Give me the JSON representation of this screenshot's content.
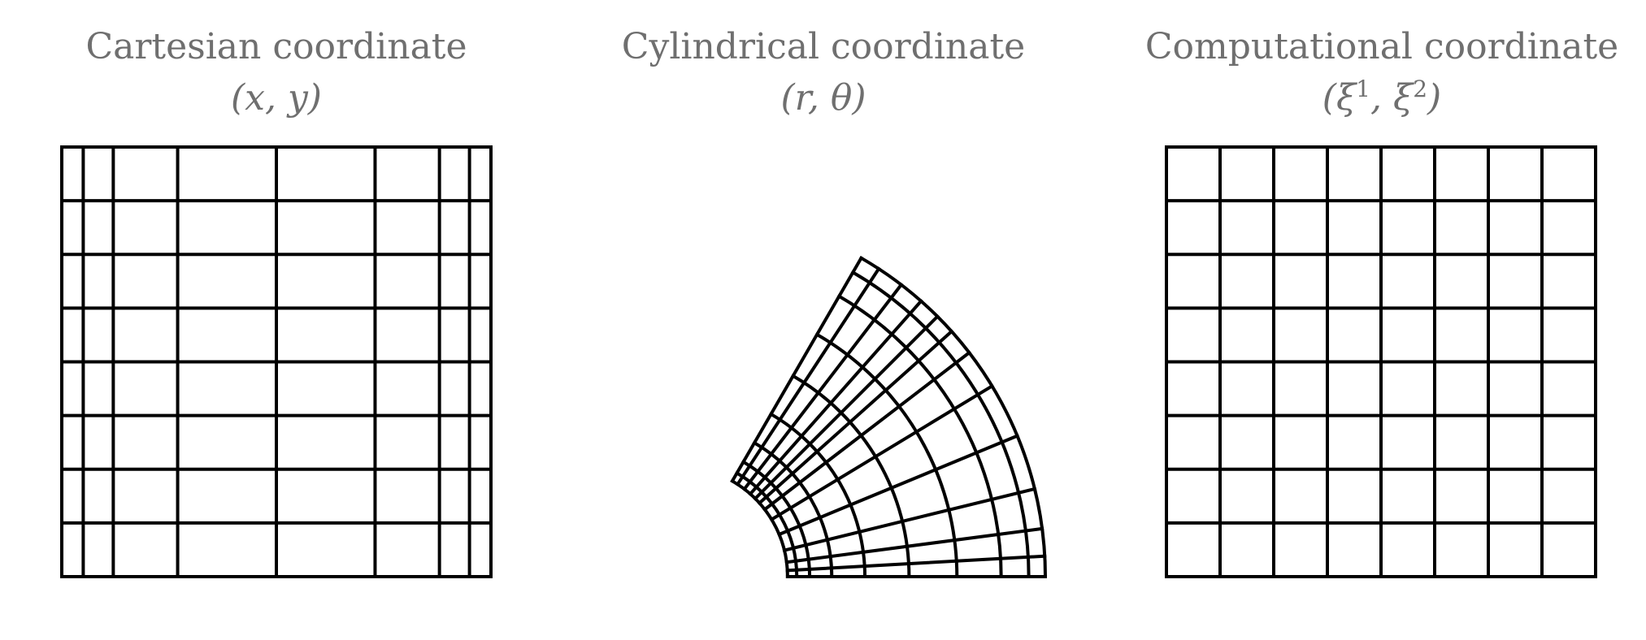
{
  "panels": [
    {
      "id": "cartesian",
      "title": "Cartesian coordinate",
      "coords_text": "(x, y)",
      "grid_lines": "#000000",
      "x_lines": [
        0.0,
        0.05,
        0.12,
        0.27,
        0.5,
        0.73,
        0.88,
        0.95,
        1.0
      ],
      "y_lines": [
        0.0,
        0.125,
        0.25,
        0.375,
        0.5,
        0.625,
        0.75,
        0.875,
        1.0
      ]
    },
    {
      "id": "cylindrical",
      "title": "Cylindrical coordinate",
      "coords_text": "(r, θ)",
      "r_inner": 0.3,
      "r_outer": 1.0,
      "r_lines": [
        0.3,
        0.325,
        0.36,
        0.42,
        0.51,
        0.63,
        0.76,
        0.88,
        0.955,
        1.0
      ],
      "theta_start_deg": 0,
      "theta_end_deg": 60,
      "theta_lines_deg": [
        0,
        3.2,
        7.5,
        13.8,
        22.5,
        31.2,
        37.5,
        41.8,
        45.0,
        48.5,
        52.5,
        56.8,
        60.0
      ]
    },
    {
      "id": "computational",
      "title": "Computational coordinate",
      "coords_base": "ξ",
      "coords_sup1": "1",
      "coords_sup2": "2",
      "x_lines": [
        0,
        0.125,
        0.25,
        0.375,
        0.5,
        0.625,
        0.75,
        0.875,
        1.0
      ],
      "y_lines": [
        0,
        0.125,
        0.25,
        0.375,
        0.5,
        0.625,
        0.75,
        0.875,
        1.0
      ]
    }
  ]
}
